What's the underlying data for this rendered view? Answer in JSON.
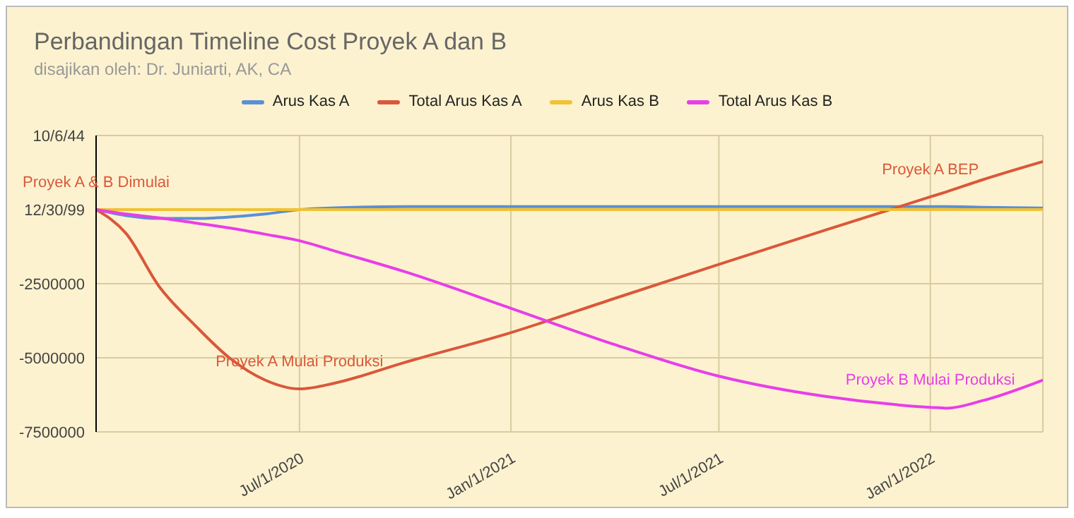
{
  "chart_data": {
    "type": "line",
    "title": "Perbandingan Timeline Cost Proyek A dan B",
    "subtitle": "disajikan oleh: Dr. Juniarti, AK, CA",
    "x": [
      "2020-01-06",
      "2020-02-01",
      "2020-03-01",
      "2020-04-01",
      "2020-05-01",
      "2020-06-01",
      "2020-07-01",
      "2020-08-01",
      "2020-10-01",
      "2021-01-01",
      "2021-04-01",
      "2021-07-01",
      "2021-10-01",
      "2022-01-01",
      "2022-01-15",
      "2022-02-15",
      "2022-04-09"
    ],
    "series": [
      {
        "name": "Arus Kas A",
        "color": "#5b8fd6",
        "values": [
          0,
          -200000,
          -300000,
          -300000,
          -250000,
          -150000,
          0,
          60000,
          100000,
          100000,
          100000,
          100000,
          100000,
          100000,
          100000,
          80000,
          50000
        ]
      },
      {
        "name": "Total Arus Kas A",
        "color": "#d9583b",
        "values": [
          0,
          -800000,
          -2600000,
          -3900000,
          -5000000,
          -5750000,
          -6050000,
          -5850000,
          -5150000,
          -4150000,
          -3000000,
          -1850000,
          -700000,
          430000,
          600000,
          1000000,
          1620000
        ]
      },
      {
        "name": "Arus Kas B",
        "color": "#f1c232",
        "values": [
          0,
          0,
          0,
          0,
          0,
          0,
          0,
          0,
          0,
          0,
          0,
          0,
          0,
          0,
          0,
          0,
          0
        ]
      },
      {
        "name": "Total Arus Kas B",
        "color": "#e83ee8",
        "values": [
          0,
          -150000,
          -280000,
          -450000,
          -620000,
          -830000,
          -1050000,
          -1400000,
          -2100000,
          -3330000,
          -4550000,
          -5620000,
          -6300000,
          -6670000,
          -6700000,
          -6450000,
          -5750000
        ]
      }
    ],
    "xlim": [
      "2020-01-06",
      "2022-04-09"
    ],
    "xticks": [
      {
        "value": "2020-07-01",
        "label": "Jul/1/2020"
      },
      {
        "value": "2021-01-01",
        "label": "Jan/1/2021"
      },
      {
        "value": "2021-07-01",
        "label": "Jul/1/2021"
      },
      {
        "value": "2022-01-01",
        "label": "Jan/1/2022"
      }
    ],
    "ylim": [
      -7500000,
      2500000
    ],
    "yticks": [
      -7500000,
      -5000000,
      -2500000,
      {
        "value": 0,
        "label": "12/30/99"
      },
      {
        "value": 2500000,
        "label": "10/6/44"
      }
    ],
    "annotations": [
      {
        "text": "Proyek A & B Dimulai",
        "x": "2020-01-06",
        "y": 0
      },
      {
        "text": "Proyek A Mulai Produksi",
        "x": "2020-07-01",
        "y": -6050000
      },
      {
        "text": "Proyek A BEP",
        "x": "2022-01-01",
        "y": 430000
      },
      {
        "text": "Proyek B Mulai Produksi",
        "x": "2022-01-01",
        "y": -6670000
      }
    ],
    "grid": true,
    "legend": "top",
    "marker": "none",
    "line_style": "solid"
  }
}
